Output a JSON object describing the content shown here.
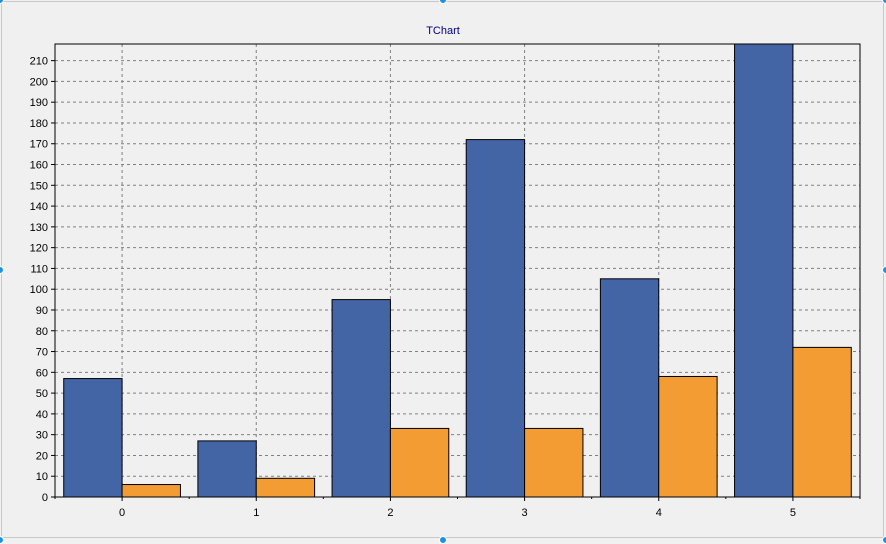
{
  "chart_data": {
    "type": "bar",
    "title": "TChart",
    "xlabel": "",
    "ylabel": "",
    "categories": [
      "0",
      "1",
      "2",
      "3",
      "4",
      "5"
    ],
    "series": [
      {
        "values": [
          57,
          27,
          95,
          172,
          105,
          218
        ]
      },
      {
        "values": [
          6,
          9,
          33,
          33,
          58,
          72
        ]
      }
    ],
    "ylim": [
      0,
      218
    ],
    "yticks": [
      0,
      10,
      20,
      30,
      40,
      50,
      60,
      70,
      80,
      90,
      100,
      110,
      120,
      130,
      140,
      150,
      160,
      170,
      180,
      190,
      200,
      210
    ],
    "grid": true,
    "legend": "none",
    "colors": [
      "#4364a5",
      "#f39c33"
    ]
  }
}
